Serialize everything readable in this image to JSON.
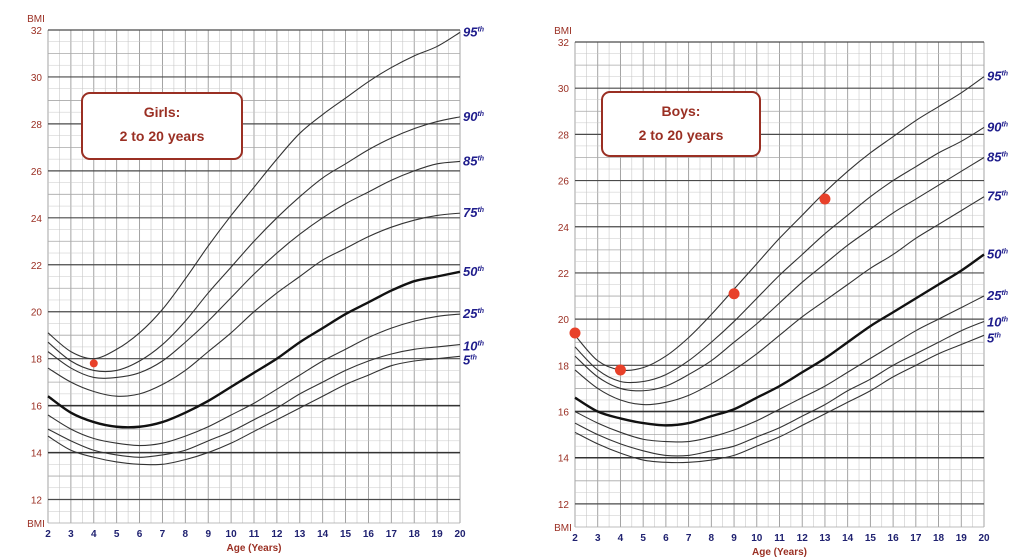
{
  "colors": {
    "grid_minor": "#c8c8c8",
    "grid_major": "#4a4a4a",
    "curve": "#333333",
    "curve_median": "#111111",
    "axis_text": "#9a2f23",
    "percentile_text": "#1f1d8c",
    "marker": "#e8412a",
    "box_border": "#9a2f23"
  },
  "chart_data": [
    {
      "type": "line",
      "title_line1": "Girls:",
      "title_line2": "2 to 20 years",
      "ylabel": "BMI",
      "xlabel": "Age (Years)",
      "xlim": [
        2,
        20
      ],
      "ylim": [
        11,
        32
      ],
      "x_ticks": [
        "2",
        "3",
        "4",
        "5",
        "6",
        "7",
        "8",
        "9",
        "10",
        "11",
        "12",
        "13",
        "14",
        "15",
        "16",
        "17",
        "18",
        "19",
        "20"
      ],
      "y_ticks": [
        "12",
        "14",
        "16",
        "18",
        "20",
        "22",
        "24",
        "26",
        "28",
        "30",
        "32"
      ],
      "grid": true,
      "series": [
        {
          "name": "95th",
          "median": false,
          "label_main": "95",
          "label_sup": "th",
          "x": [
            2,
            3,
            4,
            5,
            6,
            7,
            8,
            9,
            10,
            11,
            12,
            13,
            14,
            15,
            16,
            17,
            18,
            19,
            20
          ],
          "values": [
            19.1,
            18.3,
            18.0,
            18.4,
            19.1,
            20.1,
            21.4,
            22.8,
            24.1,
            25.3,
            26.5,
            27.6,
            28.4,
            29.1,
            29.8,
            30.4,
            30.9,
            31.3,
            31.9
          ]
        },
        {
          "name": "90th",
          "median": false,
          "label_main": "90",
          "label_sup": "th",
          "x": [
            2,
            3,
            4,
            5,
            6,
            7,
            8,
            9,
            10,
            11,
            12,
            13,
            14,
            15,
            16,
            17,
            18,
            19,
            20
          ],
          "values": [
            18.7,
            17.9,
            17.5,
            17.5,
            17.9,
            18.6,
            19.6,
            20.8,
            21.9,
            23.0,
            24.0,
            24.9,
            25.7,
            26.3,
            26.9,
            27.4,
            27.8,
            28.1,
            28.3
          ]
        },
        {
          "name": "85th",
          "median": false,
          "label_main": "85",
          "label_sup": "th",
          "x": [
            2,
            3,
            4,
            5,
            6,
            7,
            8,
            9,
            10,
            11,
            12,
            13,
            14,
            15,
            16,
            17,
            18,
            19,
            20
          ],
          "values": [
            18.3,
            17.6,
            17.2,
            17.2,
            17.4,
            17.9,
            18.7,
            19.6,
            20.6,
            21.6,
            22.5,
            23.3,
            24.0,
            24.6,
            25.1,
            25.6,
            26.0,
            26.3,
            26.4
          ]
        },
        {
          "name": "75th",
          "median": false,
          "label_main": "75",
          "label_sup": "th",
          "x": [
            2,
            3,
            4,
            5,
            6,
            7,
            8,
            9,
            10,
            11,
            12,
            13,
            14,
            15,
            16,
            17,
            18,
            19,
            20
          ],
          "values": [
            17.6,
            17.0,
            16.6,
            16.4,
            16.5,
            16.9,
            17.5,
            18.3,
            19.1,
            20.0,
            20.8,
            21.5,
            22.2,
            22.7,
            23.2,
            23.6,
            23.9,
            24.1,
            24.2
          ]
        },
        {
          "name": "50th",
          "median": true,
          "label_main": "50",
          "label_sup": "th",
          "x": [
            2,
            3,
            4,
            5,
            6,
            7,
            8,
            9,
            10,
            11,
            12,
            13,
            14,
            15,
            16,
            17,
            18,
            19,
            20
          ],
          "values": [
            16.4,
            15.7,
            15.3,
            15.1,
            15.1,
            15.3,
            15.7,
            16.2,
            16.8,
            17.4,
            18.0,
            18.7,
            19.3,
            19.9,
            20.4,
            20.9,
            21.3,
            21.5,
            21.7
          ]
        },
        {
          "name": "25th",
          "median": false,
          "label_main": "25",
          "label_sup": "th",
          "x": [
            2,
            3,
            4,
            5,
            6,
            7,
            8,
            9,
            10,
            11,
            12,
            13,
            14,
            15,
            16,
            17,
            18,
            19,
            20
          ],
          "values": [
            15.6,
            15.0,
            14.6,
            14.4,
            14.3,
            14.4,
            14.7,
            15.1,
            15.6,
            16.1,
            16.7,
            17.3,
            17.9,
            18.4,
            18.9,
            19.3,
            19.6,
            19.8,
            19.9
          ]
        },
        {
          "name": "10th",
          "median": false,
          "label_main": "10",
          "label_sup": "th",
          "x": [
            2,
            3,
            4,
            5,
            6,
            7,
            8,
            9,
            10,
            11,
            12,
            13,
            14,
            15,
            16,
            17,
            18,
            19,
            20
          ],
          "values": [
            15.0,
            14.5,
            14.1,
            13.9,
            13.8,
            13.9,
            14.1,
            14.5,
            14.9,
            15.4,
            15.9,
            16.5,
            17.0,
            17.5,
            17.9,
            18.2,
            18.4,
            18.5,
            18.6
          ]
        },
        {
          "name": "5th",
          "median": false,
          "label_main": "5",
          "label_sup": "th",
          "x": [
            2,
            3,
            4,
            5,
            6,
            7,
            8,
            9,
            10,
            11,
            12,
            13,
            14,
            15,
            16,
            17,
            18,
            19,
            20
          ],
          "values": [
            14.7,
            14.1,
            13.8,
            13.6,
            13.5,
            13.5,
            13.7,
            14.0,
            14.4,
            14.9,
            15.4,
            15.9,
            16.4,
            16.9,
            17.3,
            17.7,
            17.9,
            18.0,
            18.1
          ]
        }
      ],
      "markers": [
        {
          "x": 4,
          "y": 17.8
        }
      ]
    },
    {
      "type": "line",
      "title_line1": "Boys:",
      "title_line2": "2 to 20 years",
      "ylabel": "BMI",
      "xlabel": "Age (Years)",
      "xlim": [
        2,
        20
      ],
      "ylim": [
        11,
        32
      ],
      "x_ticks": [
        "2",
        "3",
        "4",
        "5",
        "6",
        "7",
        "8",
        "9",
        "10",
        "11",
        "12",
        "13",
        "14",
        "15",
        "16",
        "17",
        "18",
        "19",
        "20"
      ],
      "y_ticks": [
        "12",
        "14",
        "16",
        "18",
        "20",
        "22",
        "24",
        "26",
        "28",
        "30",
        "32"
      ],
      "grid": true,
      "series": [
        {
          "name": "95th",
          "median": false,
          "label_main": "95",
          "label_sup": "th",
          "x": [
            2,
            3,
            4,
            5,
            6,
            7,
            8,
            9,
            10,
            11,
            12,
            13,
            14,
            15,
            16,
            17,
            18,
            19,
            20
          ],
          "values": [
            19.3,
            18.2,
            17.8,
            17.9,
            18.4,
            19.2,
            20.2,
            21.3,
            22.4,
            23.5,
            24.5,
            25.5,
            26.4,
            27.2,
            27.9,
            28.6,
            29.2,
            29.8,
            30.5
          ]
        },
        {
          "name": "90th",
          "median": false,
          "label_main": "90",
          "label_sup": "th",
          "x": [
            2,
            3,
            4,
            5,
            6,
            7,
            8,
            9,
            10,
            11,
            12,
            13,
            14,
            15,
            16,
            17,
            18,
            19,
            20
          ],
          "values": [
            18.8,
            17.8,
            17.3,
            17.3,
            17.6,
            18.2,
            19.0,
            19.9,
            20.9,
            21.9,
            22.8,
            23.7,
            24.5,
            25.3,
            26.0,
            26.6,
            27.2,
            27.7,
            28.3
          ]
        },
        {
          "name": "85th",
          "median": false,
          "label_main": "85",
          "label_sup": "th",
          "x": [
            2,
            3,
            4,
            5,
            6,
            7,
            8,
            9,
            10,
            11,
            12,
            13,
            14,
            15,
            16,
            17,
            18,
            19,
            20
          ],
          "values": [
            18.4,
            17.5,
            17.0,
            16.9,
            17.1,
            17.6,
            18.2,
            19.0,
            19.8,
            20.7,
            21.6,
            22.4,
            23.2,
            23.9,
            24.6,
            25.2,
            25.8,
            26.4,
            27.0
          ]
        },
        {
          "name": "75th",
          "median": false,
          "label_main": "75",
          "label_sup": "th",
          "x": [
            2,
            3,
            4,
            5,
            6,
            7,
            8,
            9,
            10,
            11,
            12,
            13,
            14,
            15,
            16,
            17,
            18,
            19,
            20
          ],
          "values": [
            17.8,
            17.0,
            16.5,
            16.3,
            16.4,
            16.7,
            17.2,
            17.8,
            18.5,
            19.3,
            20.1,
            20.8,
            21.5,
            22.2,
            22.8,
            23.5,
            24.1,
            24.7,
            25.3
          ]
        },
        {
          "name": "50th",
          "median": true,
          "label_main": "50",
          "label_sup": "th",
          "x": [
            2,
            3,
            4,
            5,
            6,
            7,
            8,
            9,
            10,
            11,
            12,
            13,
            14,
            15,
            16,
            17,
            18,
            19,
            20
          ],
          "values": [
            16.6,
            16.0,
            15.7,
            15.5,
            15.4,
            15.5,
            15.8,
            16.1,
            16.6,
            17.1,
            17.7,
            18.3,
            19.0,
            19.7,
            20.3,
            20.9,
            21.5,
            22.1,
            22.8
          ]
        },
        {
          "name": "25th",
          "median": false,
          "label_main": "25",
          "label_sup": "th",
          "x": [
            2,
            3,
            4,
            5,
            6,
            7,
            8,
            9,
            10,
            11,
            12,
            13,
            14,
            15,
            16,
            17,
            18,
            19,
            20
          ],
          "values": [
            16.0,
            15.5,
            15.1,
            14.8,
            14.7,
            14.7,
            14.9,
            15.2,
            15.6,
            16.1,
            16.6,
            17.1,
            17.7,
            18.3,
            18.9,
            19.5,
            20.0,
            20.5,
            21.0
          ]
        },
        {
          "name": "10th",
          "median": false,
          "label_main": "10",
          "label_sup": "th",
          "x": [
            2,
            3,
            4,
            5,
            6,
            7,
            8,
            9,
            10,
            11,
            12,
            13,
            14,
            15,
            16,
            17,
            18,
            19,
            20
          ],
          "values": [
            15.5,
            15.0,
            14.6,
            14.3,
            14.1,
            14.1,
            14.3,
            14.5,
            14.9,
            15.3,
            15.8,
            16.3,
            16.9,
            17.4,
            18.0,
            18.5,
            19.0,
            19.5,
            19.9
          ]
        },
        {
          "name": "5th",
          "median": false,
          "label_main": "5",
          "label_sup": "th",
          "x": [
            2,
            3,
            4,
            5,
            6,
            7,
            8,
            9,
            10,
            11,
            12,
            13,
            14,
            15,
            16,
            17,
            18,
            19,
            20
          ],
          "values": [
            15.1,
            14.6,
            14.2,
            13.9,
            13.8,
            13.8,
            13.9,
            14.1,
            14.5,
            14.9,
            15.4,
            15.9,
            16.4,
            16.9,
            17.5,
            18.0,
            18.5,
            18.9,
            19.3
          ]
        }
      ],
      "markers": [
        {
          "x": 2,
          "y": 19.4
        },
        {
          "x": 4,
          "y": 17.8
        },
        {
          "x": 9,
          "y": 21.1
        },
        {
          "x": 13,
          "y": 25.2
        }
      ]
    }
  ]
}
